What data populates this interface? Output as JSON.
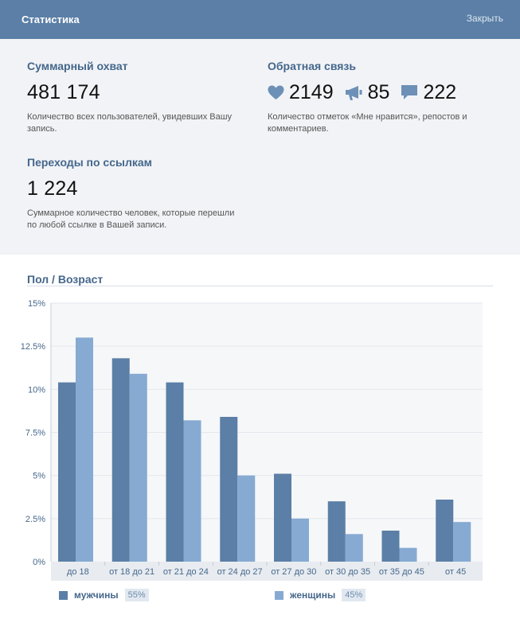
{
  "header": {
    "title": "Статистика",
    "close_label": "Закрыть"
  },
  "reach": {
    "title": "Суммарный охват",
    "value": "481 174",
    "description_line1": "Количество всех пользователей, увидевших Вашу",
    "description_line2": "запись."
  },
  "feedback": {
    "title": "Обратная связь",
    "likes": "2149",
    "reposts": "85",
    "comments": "222",
    "description_line1": "Количество отметок «Мне нравится», репостов и",
    "description_line2": "комментариев."
  },
  "clicks": {
    "title": "Переходы по ссылкам",
    "value": "1 224",
    "description_line1": "Суммарное количество человек, которые перешли",
    "description_line2": "по любой ссылке в Вашей записи."
  },
  "gender_age": {
    "title": "Пол / Возраст"
  },
  "colors": {
    "men": "#5b7fa6",
    "women": "#86aad2",
    "header": "#5b7fa6",
    "accent": "#45678c"
  },
  "icons": [
    "heart-icon",
    "megaphone-icon",
    "comment-icon"
  ],
  "chart_data": {
    "type": "bar",
    "categories": [
      "до 18",
      "от 18 до 21",
      "от 21 до 24",
      "от 24 до 27",
      "от 27 до 30",
      "от 30 до 35",
      "от 35 до 45",
      "от 45"
    ],
    "series": [
      {
        "name": "мужчины",
        "values": [
          10.4,
          11.8,
          10.4,
          8.4,
          5.1,
          3.5,
          1.8,
          3.6
        ]
      },
      {
        "name": "женщины",
        "values": [
          13.0,
          10.9,
          8.2,
          5.0,
          2.5,
          1.6,
          0.8,
          2.3
        ]
      }
    ],
    "yticks": [
      "0%",
      "2.5%",
      "5%",
      "7.5%",
      "10%",
      "12.5%",
      "15%"
    ],
    "ylim": [
      0,
      15
    ],
    "grid": true,
    "legend": {
      "men_label": "мужчины",
      "men_pct": "55%",
      "women_label": "женщины",
      "women_pct": "45%"
    }
  }
}
